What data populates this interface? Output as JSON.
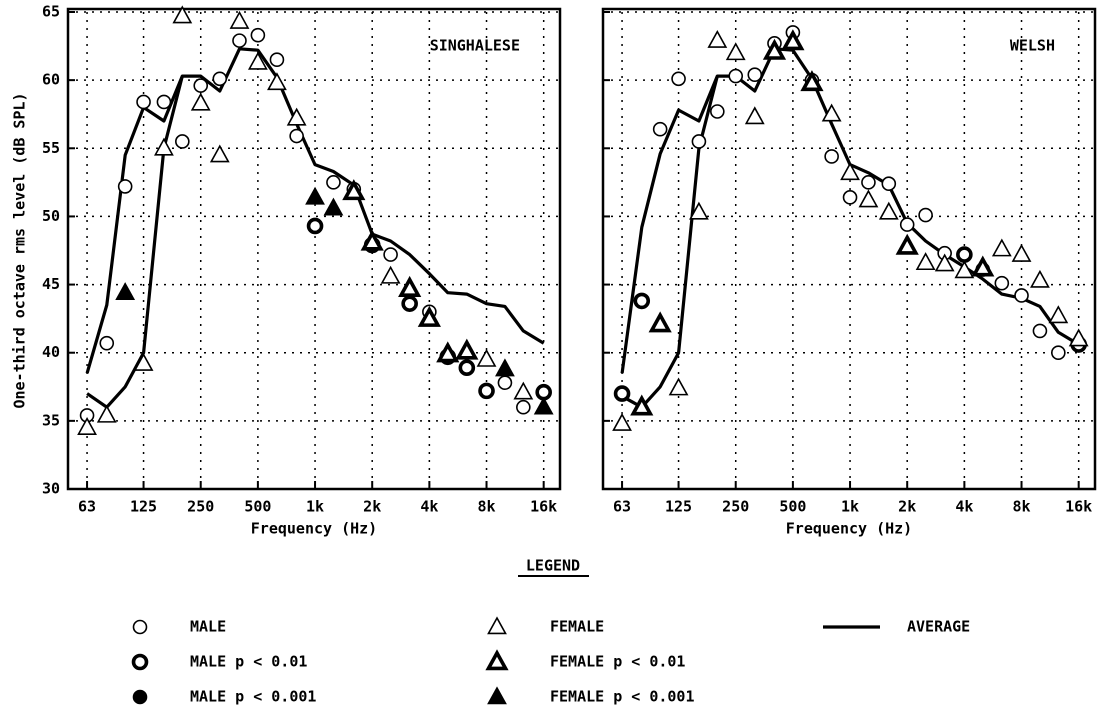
{
  "chart_data": [
    {
      "type": "scatter",
      "annotation": "SINGHALESE",
      "xlabel": "Frequency (Hz)",
      "ylabel": "One-third octave rms level (dB SPL)",
      "xscale": "log",
      "grid": true,
      "x": [
        63,
        80,
        100,
        125,
        160,
        200,
        250,
        315,
        400,
        500,
        630,
        800,
        1000,
        1250,
        1600,
        2000,
        2500,
        3150,
        4000,
        5000,
        6300,
        8000,
        10000,
        12500,
        16000
      ],
      "xlim": [
        50,
        19500
      ],
      "xticks": [
        63,
        125,
        250,
        500,
        {
          "value": 1000,
          "label": "1k"
        },
        {
          "value": 2000,
          "label": "2k"
        },
        {
          "value": 4000,
          "label": "4k"
        },
        {
          "value": 8000,
          "label": "8k"
        },
        {
          "value": 16000,
          "label": "16k"
        }
      ],
      "ylim": [
        30,
        65
      ],
      "yticks": [
        30,
        35,
        40,
        45,
        50,
        55,
        60,
        65
      ],
      "series": [
        {
          "name": "MALE",
          "marker": "circle",
          "fill": "open",
          "color": "#000000",
          "values": [
            35.4,
            40.7,
            52.2,
            58.4,
            58.4,
            55.5,
            59.6,
            60.1,
            62.9,
            63.3,
            61.5,
            55.9,
            null,
            52.5,
            52.0,
            null,
            47.2,
            null,
            43.0,
            null,
            null,
            null,
            37.8,
            36.0,
            null
          ]
        },
        {
          "name": "MALE p < 0.01",
          "marker": "circle",
          "fill": "thick",
          "color": "#000000",
          "values": [
            null,
            null,
            null,
            null,
            null,
            null,
            null,
            null,
            null,
            null,
            null,
            null,
            49.3,
            null,
            null,
            47.9,
            null,
            43.6,
            null,
            39.7,
            38.9,
            37.2,
            null,
            null,
            37.1
          ]
        },
        {
          "name": "MALE p < 0.001",
          "marker": "circle",
          "fill": "filled",
          "color": "#000000",
          "values": [
            null,
            null,
            null,
            null,
            null,
            null,
            null,
            null,
            null,
            null,
            null,
            null,
            null,
            null,
            null,
            null,
            null,
            null,
            null,
            null,
            null,
            null,
            null,
            null,
            null
          ]
        },
        {
          "name": "FEMALE",
          "marker": "triangle",
          "fill": "open",
          "color": "#000000",
          "values": [
            34.5,
            35.4,
            null,
            39.2,
            55.0,
            64.7,
            58.3,
            54.5,
            64.3,
            61.3,
            59.8,
            57.2,
            null,
            null,
            null,
            null,
            45.6,
            null,
            null,
            null,
            null,
            39.5,
            null,
            37.1,
            null
          ]
        },
        {
          "name": "FEMALE p < 0.01",
          "marker": "triangle",
          "fill": "thick",
          "color": "#000000",
          "values": [
            null,
            null,
            null,
            null,
            null,
            null,
            null,
            null,
            null,
            null,
            null,
            null,
            null,
            null,
            51.8,
            48.1,
            null,
            44.7,
            42.5,
            39.9,
            40.1,
            null,
            null,
            null,
            null
          ]
        },
        {
          "name": "FEMALE p < 0.001",
          "marker": "triangle",
          "fill": "filled",
          "color": "#000000",
          "values": [
            null,
            null,
            44.4,
            null,
            null,
            null,
            null,
            null,
            null,
            null,
            null,
            null,
            51.4,
            50.6,
            null,
            null,
            null,
            null,
            null,
            null,
            null,
            null,
            38.8,
            null,
            36.0
          ]
        },
        {
          "name": "AVERAGE",
          "marker": "line",
          "color": "#000000",
          "values": [
            38.5,
            43.5,
            54.5,
            58.0,
            57.0,
            60.3,
            60.3,
            59.2,
            62.3,
            62.2,
            60.2,
            56.8,
            53.8,
            53.3,
            52.3,
            48.7,
            48.2,
            47.2,
            45.8,
            44.4,
            44.3,
            43.6,
            43.4,
            41.6,
            40.7
          ]
        },
        {
          "marker": "line",
          "color": "#000000",
          "values": [
            37.0,
            36.0,
            37.5,
            40.0,
            55.0,
            60.3,
            null,
            null,
            null,
            null,
            null,
            null,
            null,
            null,
            null,
            null,
            null,
            null,
            null,
            null,
            null,
            null,
            null,
            null,
            null
          ]
        }
      ]
    },
    {
      "type": "scatter",
      "annotation": "WELSH",
      "xlabel": "Frequency (Hz)",
      "xscale": "log",
      "grid": true,
      "x": [
        63,
        80,
        100,
        125,
        160,
        200,
        250,
        315,
        400,
        500,
        630,
        800,
        1000,
        1250,
        1600,
        2000,
        2500,
        3150,
        4000,
        5000,
        6300,
        8000,
        10000,
        12500,
        16000
      ],
      "xlim": [
        50,
        19500
      ],
      "xticks": [
        63,
        125,
        250,
        500,
        {
          "value": 1000,
          "label": "1k"
        },
        {
          "value": 2000,
          "label": "2k"
        },
        {
          "value": 4000,
          "label": "4k"
        },
        {
          "value": 8000,
          "label": "8k"
        },
        {
          "value": 16000,
          "label": "16k"
        }
      ],
      "ylim": [
        30,
        65
      ],
      "series": [
        {
          "marker": "circle",
          "fill": "open",
          "color": "#000000",
          "values": [
            null,
            null,
            56.4,
            60.1,
            55.5,
            57.7,
            60.3,
            60.4,
            62.7,
            63.5,
            60.0,
            54.4,
            51.4,
            52.5,
            52.4,
            49.4,
            50.1,
            47.3,
            null,
            46.1,
            45.1,
            44.2,
            41.6,
            40.0,
            null
          ]
        },
        {
          "marker": "circle",
          "fill": "thick",
          "color": "#000000",
          "values": [
            37.0,
            43.8,
            null,
            null,
            null,
            null,
            null,
            null,
            null,
            null,
            null,
            null,
            null,
            null,
            null,
            null,
            null,
            null,
            47.2,
            null,
            null,
            null,
            null,
            null,
            40.6
          ]
        },
        {
          "marker": "circle",
          "fill": "filled",
          "color": "#000000",
          "values": [
            null,
            null,
            null,
            null,
            null,
            null,
            null,
            null,
            null,
            null,
            null,
            null,
            null,
            null,
            null,
            null,
            null,
            null,
            null,
            null,
            null,
            null,
            null,
            null,
            null
          ]
        },
        {
          "marker": "triangle",
          "fill": "open",
          "color": "#000000",
          "values": [
            34.8,
            null,
            null,
            37.4,
            50.3,
            62.9,
            62.0,
            57.3,
            null,
            null,
            null,
            57.5,
            53.2,
            51.2,
            50.3,
            null,
            46.6,
            46.5,
            46.0,
            null,
            47.6,
            47.2,
            45.3,
            42.7,
            41.0
          ]
        },
        {
          "marker": "triangle",
          "fill": "thick",
          "color": "#000000",
          "values": [
            null,
            36.0,
            42.1,
            null,
            null,
            null,
            null,
            null,
            62.1,
            62.8,
            59.8,
            null,
            null,
            null,
            null,
            47.8,
            null,
            null,
            null,
            46.2,
            null,
            null,
            null,
            null,
            null
          ]
        },
        {
          "marker": "triangle",
          "fill": "filled",
          "color": "#000000",
          "values": [
            null,
            null,
            null,
            null,
            null,
            null,
            null,
            null,
            null,
            null,
            null,
            null,
            null,
            null,
            null,
            null,
            null,
            null,
            null,
            null,
            null,
            null,
            null,
            null,
            null
          ]
        },
        {
          "marker": "line",
          "color": "#000000",
          "values": [
            38.5,
            49.2,
            54.6,
            57.8,
            57.0,
            60.3,
            60.3,
            59.2,
            62.3,
            62.2,
            60.1,
            56.8,
            53.8,
            53.2,
            52.3,
            49.5,
            48.2,
            47.2,
            46.3,
            45.4,
            44.3,
            44.0,
            43.4,
            41.5,
            40.6
          ]
        },
        {
          "marker": "line",
          "color": "#000000",
          "values": [
            36.8,
            36.0,
            37.5,
            40.0,
            55.0,
            60.3,
            null,
            null,
            null,
            null,
            null,
            null,
            null,
            null,
            null,
            null,
            null,
            null,
            null,
            null,
            null,
            null,
            null,
            null,
            null
          ]
        }
      ]
    }
  ],
  "legend_title": "LEGEND"
}
